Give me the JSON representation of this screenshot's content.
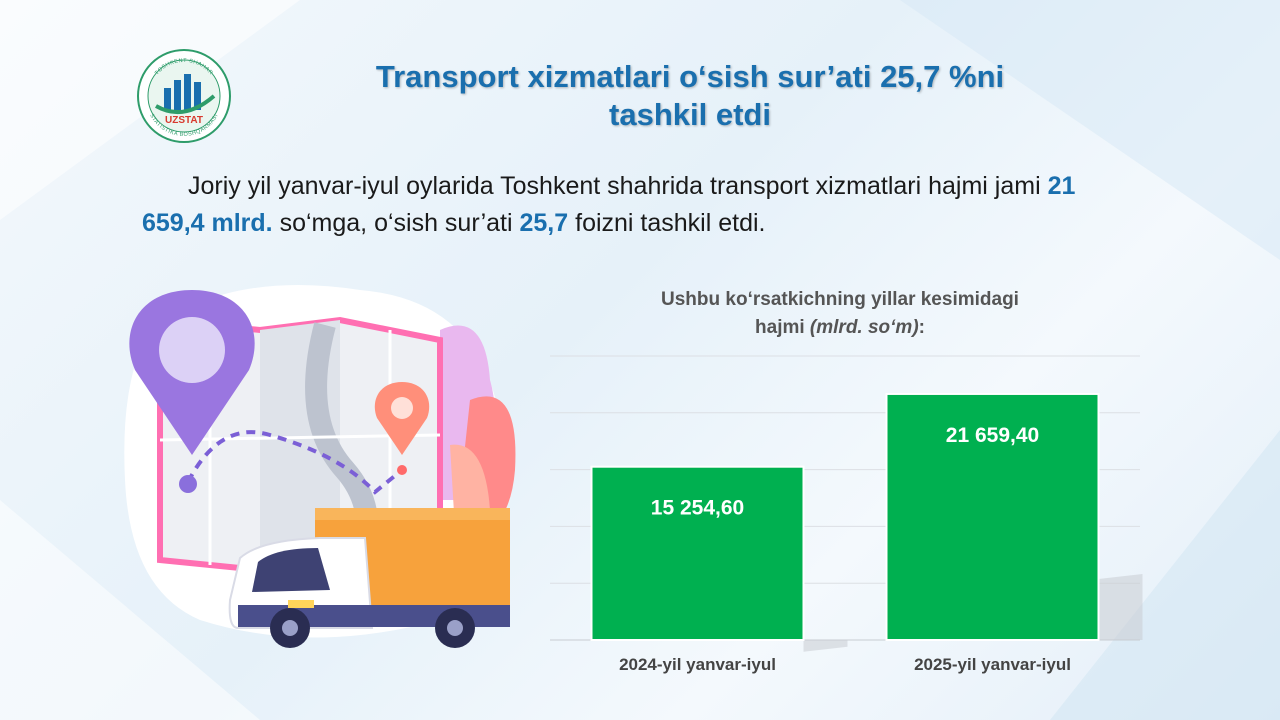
{
  "logo": {
    "text": "UZSTAT",
    "ring_text_top": "TOSHKENT SHAHAR",
    "ring_text_bottom": "STATISTIKA BOSHQARMASI"
  },
  "title": {
    "line1": "Transport xizmatlari o‘sish sur’ati 25,7 %ni",
    "line2": "tashkil etdi"
  },
  "intro": {
    "part1": "Joriy yil yanvar-iyul oylarida Toshkent shahrida transport xizmatlari hajmi jami ",
    "amount": "21 659,4 mlrd.",
    "part2": " so‘mga, o‘sish sur’ati ",
    "rate": "25,7",
    "part3": " foizni tashkil etdi."
  },
  "colors": {
    "accent": "#1a6fae",
    "bar": "#00b050",
    "text": "#1a1a1a"
  },
  "chart_data": {
    "type": "bar",
    "title": "Ushbu ko‘rsatkichning yillar kesimidagi",
    "title_line2": "hajmi ",
    "unit": "(mlrd. so‘m)",
    "unit_suffix": ":",
    "categories": [
      "2024-yil yanvar-iyul",
      "2025-yil yanvar-iyul"
    ],
    "values": [
      15254.6,
      21659.4
    ],
    "value_labels": [
      "15 254,60",
      "21 659,40"
    ],
    "ylim": [
      0,
      25000
    ],
    "grid": true,
    "legend": "none"
  }
}
